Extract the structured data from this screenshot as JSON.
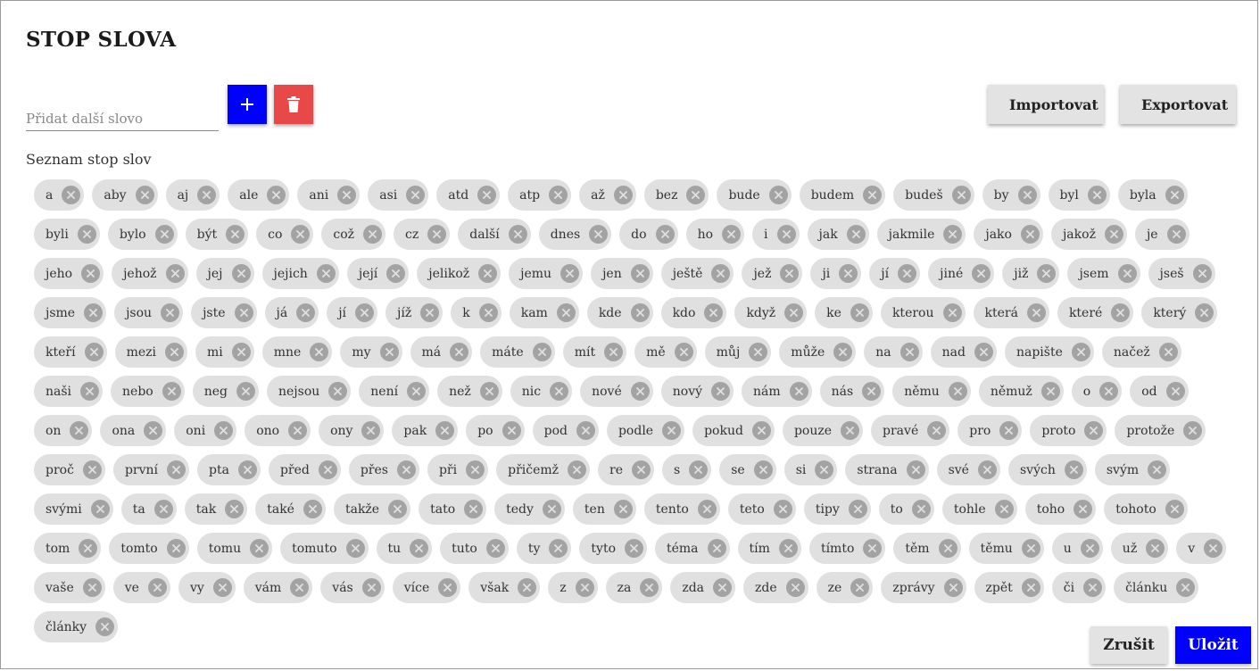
{
  "dialog": {
    "title": "STOP SLOVA",
    "add_placeholder": "Přidat další slovo",
    "add_value": "",
    "import_label": "Importovat",
    "export_label": "Exportovat",
    "list_label": "Seznam stop slov",
    "cancel_label": "Zrušit",
    "save_label": "Uložit"
  },
  "icons": {
    "add": "plus-icon",
    "delete": "trash-icon",
    "import": "download-icon",
    "export": "upload-icon",
    "chip_remove": "close-circle-icon"
  },
  "colors": {
    "primary": "#0000ff",
    "danger": "#e84848",
    "chip_bg": "#e0e0e0",
    "chip_remove_bg": "#a3a3a3",
    "neutral_button": "#e3e3e3"
  },
  "stop_words": [
    "a",
    "aby",
    "aj",
    "ale",
    "ani",
    "asi",
    "atd",
    "atp",
    "až",
    "bez",
    "bude",
    "budem",
    "budeš",
    "by",
    "byl",
    "byla",
    "byli",
    "bylo",
    "být",
    "co",
    "což",
    "cz",
    "další",
    "dnes",
    "do",
    "ho",
    "i",
    "jak",
    "jakmile",
    "jako",
    "jakož",
    "je",
    "jeho",
    "jehož",
    "jej",
    "jejich",
    "její",
    "jelikož",
    "jemu",
    "jen",
    "ještě",
    "jež",
    "ji",
    "jí",
    "jiné",
    "již",
    "jsem",
    "jseš",
    "jsme",
    "jsou",
    "jste",
    "já",
    "jí",
    "jíž",
    "k",
    "kam",
    "kde",
    "kdo",
    "když",
    "ke",
    "kterou",
    "která",
    "které",
    "který",
    "kteří",
    "mezi",
    "mi",
    "mne",
    "my",
    "má",
    "máte",
    "mít",
    "mě",
    "můj",
    "může",
    "na",
    "nad",
    "napište",
    "načež",
    "naši",
    "nebo",
    "neg",
    "nejsou",
    "není",
    "než",
    "nic",
    "nové",
    "nový",
    "nám",
    "nás",
    "němu",
    "němuž",
    "o",
    "od",
    "on",
    "ona",
    "oni",
    "ono",
    "ony",
    "pak",
    "po",
    "pod",
    "podle",
    "pokud",
    "pouze",
    "pravé",
    "pro",
    "proto",
    "protože",
    "proč",
    "první",
    "pta",
    "před",
    "přes",
    "při",
    "přičemž",
    "re",
    "s",
    "se",
    "si",
    "strana",
    "své",
    "svých",
    "svým",
    "svými",
    "ta",
    "tak",
    "také",
    "takže",
    "tato",
    "tedy",
    "ten",
    "tento",
    "teto",
    "tipy",
    "to",
    "tohle",
    "toho",
    "tohoto",
    "tom",
    "tomto",
    "tomu",
    "tomuto",
    "tu",
    "tuto",
    "ty",
    "tyto",
    "téma",
    "tím",
    "tímto",
    "těm",
    "těmu",
    "u",
    "už",
    "v",
    "vaše",
    "ve",
    "vy",
    "vám",
    "vás",
    "více",
    "však",
    "z",
    "za",
    "zda",
    "zde",
    "ze",
    "zprávy",
    "zpět",
    "či",
    "článku",
    "články"
  ]
}
